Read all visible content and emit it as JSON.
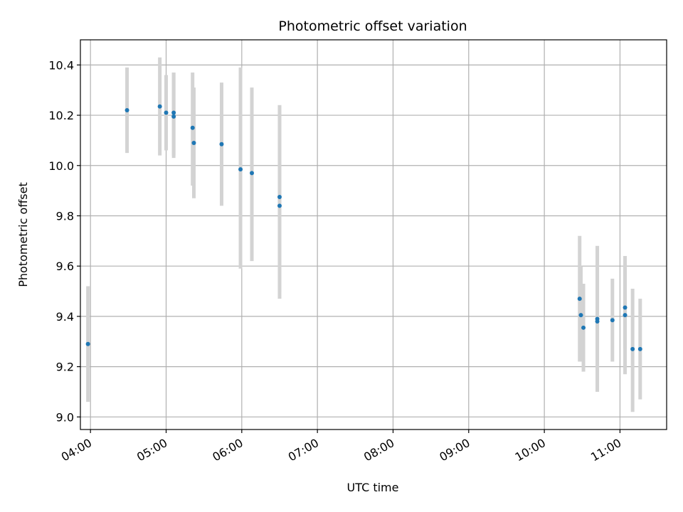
{
  "chart_data": {
    "type": "scatter",
    "title": "Photometric offset variation",
    "xlabel": "UTC time",
    "ylabel": "Photometric offset",
    "x_axis_kind": "time",
    "xlim": [
      "03:52",
      "11:37"
    ],
    "ylim": [
      8.95,
      10.5
    ],
    "x_ticks": [
      "04:00",
      "05:00",
      "06:00",
      "07:00",
      "08:00",
      "09:00",
      "10:00",
      "11:00"
    ],
    "y_ticks": [
      "9.0",
      "9.2",
      "9.4",
      "9.6",
      "9.8",
      "10.0",
      "10.2",
      "10.4"
    ],
    "grid": true,
    "point_color": "#1f77b4",
    "errorbar_color": "#d3d3d3",
    "series": [
      {
        "points": [
          {
            "t": "03:58",
            "y": 9.29,
            "lo": 9.06,
            "hi": 9.52
          },
          {
            "t": "04:29",
            "y": 10.22,
            "lo": 10.05,
            "hi": 10.39
          },
          {
            "t": "04:55",
            "y": 10.235,
            "lo": 10.04,
            "hi": 10.43
          },
          {
            "t": "05:00",
            "y": 10.21,
            "lo": 10.06,
            "hi": 10.36
          },
          {
            "t": "05:06",
            "y": 10.21,
            "lo": 10.04,
            "hi": 10.37
          },
          {
            "t": "05:06",
            "y": 10.195,
            "lo": 10.03,
            "hi": 10.37
          },
          {
            "t": "05:21",
            "y": 10.15,
            "lo": 9.92,
            "hi": 10.37
          },
          {
            "t": "05:22",
            "y": 10.09,
            "lo": 9.87,
            "hi": 10.31
          },
          {
            "t": "05:44",
            "y": 10.085,
            "lo": 9.84,
            "hi": 10.33
          },
          {
            "t": "05:59",
            "y": 9.985,
            "lo": 9.59,
            "hi": 10.39
          },
          {
            "t": "06:08",
            "y": 9.97,
            "lo": 9.62,
            "hi": 10.31
          },
          {
            "t": "06:30",
            "y": 9.875,
            "lo": 9.5,
            "hi": 10.24
          },
          {
            "t": "06:30",
            "y": 9.84,
            "lo": 9.47,
            "hi": 10.24
          },
          {
            "t": "10:28",
            "y": 9.47,
            "lo": 9.22,
            "hi": 9.72
          },
          {
            "t": "10:29",
            "y": 9.405,
            "lo": 9.22,
            "hi": 9.6
          },
          {
            "t": "10:31",
            "y": 9.355,
            "lo": 9.18,
            "hi": 9.53
          },
          {
            "t": "10:42",
            "y": 9.38,
            "lo": 9.1,
            "hi": 9.68
          },
          {
            "t": "10:42",
            "y": 9.39,
            "lo": 9.1,
            "hi": 9.68
          },
          {
            "t": "10:54",
            "y": 9.385,
            "lo": 9.22,
            "hi": 9.55
          },
          {
            "t": "11:04",
            "y": 9.435,
            "lo": 9.27,
            "hi": 9.6
          },
          {
            "t": "11:04",
            "y": 9.405,
            "lo": 9.17,
            "hi": 9.64
          },
          {
            "t": "11:10",
            "y": 9.27,
            "lo": 9.02,
            "hi": 9.51
          },
          {
            "t": "11:16",
            "y": 9.27,
            "lo": 9.07,
            "hi": 9.47
          }
        ]
      }
    ]
  }
}
